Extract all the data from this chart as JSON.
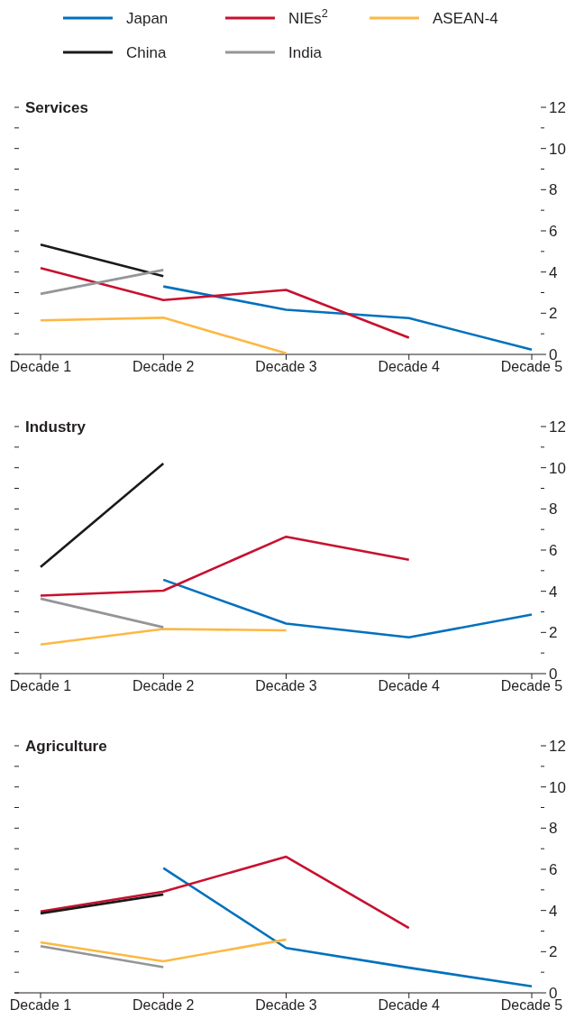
{
  "chart_data": [
    {
      "type": "line",
      "title": "Services",
      "categories": [
        "Decade 1",
        "Decade 2",
        "Decade 3",
        "Decade 4",
        "Decade 5"
      ],
      "legend": "top",
      "ylim": [
        0,
        12
      ],
      "yticks": [
        0,
        {
          "value": 1,
          "label": null
        },
        2,
        {
          "value": 3,
          "label": null
        },
        4,
        {
          "value": 5,
          "label": null
        },
        6,
        {
          "value": 7,
          "label": null
        },
        8,
        {
          "value": 9,
          "label": null
        },
        10,
        {
          "value": 11,
          "label": null
        },
        12
      ],
      "series": [
        {
          "name": "Japan",
          "color": "#0071bc",
          "values": [
            null,
            3.3,
            2.17,
            1.76,
            0.23
          ]
        },
        {
          "name": "NIEs$^{2}$",
          "color": "#c8102e",
          "values": [
            4.19,
            2.64,
            3.13,
            0.81,
            null
          ]
        },
        {
          "name": "ASEAN-4",
          "color": "#fdb844",
          "values": [
            1.65,
            1.78,
            0.05,
            null,
            null
          ]
        },
        {
          "name": "China",
          "color": "#1a1a1a",
          "values": [
            5.33,
            3.8,
            null,
            null,
            null
          ]
        },
        {
          "name": "India",
          "color": "#939598",
          "values": [
            2.94,
            4.1,
            null,
            null,
            null
          ]
        }
      ]
    },
    {
      "type": "line",
      "title": "Industry",
      "categories": [
        "Decade 1",
        "Decade 2",
        "Decade 3",
        "Decade 4",
        "Decade 5"
      ],
      "ylim": [
        0,
        12
      ],
      "yticks": [
        0,
        {
          "value": 1,
          "label": null
        },
        2,
        {
          "value": 3,
          "label": null
        },
        4,
        {
          "value": 5,
          "label": null
        },
        6,
        {
          "value": 7,
          "label": null
        },
        8,
        {
          "value": 9,
          "label": null
        },
        10,
        {
          "value": 11,
          "label": null
        },
        12
      ],
      "series": [
        {
          "color": "#0071bc",
          "values": [
            null,
            4.56,
            2.43,
            1.76,
            2.87
          ]
        },
        {
          "color": "#c8102e",
          "values": [
            3.79,
            4.03,
            6.65,
            5.53,
            null
          ]
        },
        {
          "color": "#fdb844",
          "values": [
            1.41,
            2.17,
            2.1,
            null,
            null
          ]
        },
        {
          "color": "#1a1a1a",
          "values": [
            5.18,
            10.2,
            null,
            null,
            null
          ]
        },
        {
          "color": "#939598",
          "values": [
            3.64,
            2.25,
            null,
            null,
            null
          ]
        }
      ]
    },
    {
      "type": "line",
      "title": "Agriculture",
      "categories": [
        "Decade 1",
        "Decade 2",
        "Decade 3",
        "Decade 4",
        "Decade 5"
      ],
      "ylim": [
        0,
        12
      ],
      "yticks": [
        0,
        {
          "value": 1,
          "label": null
        },
        2,
        {
          "value": 3,
          "label": null
        },
        4,
        {
          "value": 5,
          "label": null
        },
        6,
        {
          "value": 7,
          "label": null
        },
        8,
        {
          "value": 9,
          "label": null
        },
        10,
        {
          "value": 11,
          "label": null
        },
        12
      ],
      "series": [
        {
          "color": "#0071bc",
          "values": [
            null,
            6.06,
            2.18,
            1.22,
            0.32
          ]
        },
        {
          "color": "#c8102e",
          "values": [
            3.95,
            4.92,
            6.61,
            3.15,
            null
          ]
        },
        {
          "color": "#fdb844",
          "values": [
            2.45,
            1.53,
            2.59,
            null,
            null
          ]
        },
        {
          "color": "#1a1a1a",
          "values": [
            3.86,
            4.78,
            null,
            null,
            null
          ]
        },
        {
          "color": "#939598",
          "values": [
            2.27,
            1.25,
            null,
            null,
            null
          ]
        }
      ]
    }
  ]
}
